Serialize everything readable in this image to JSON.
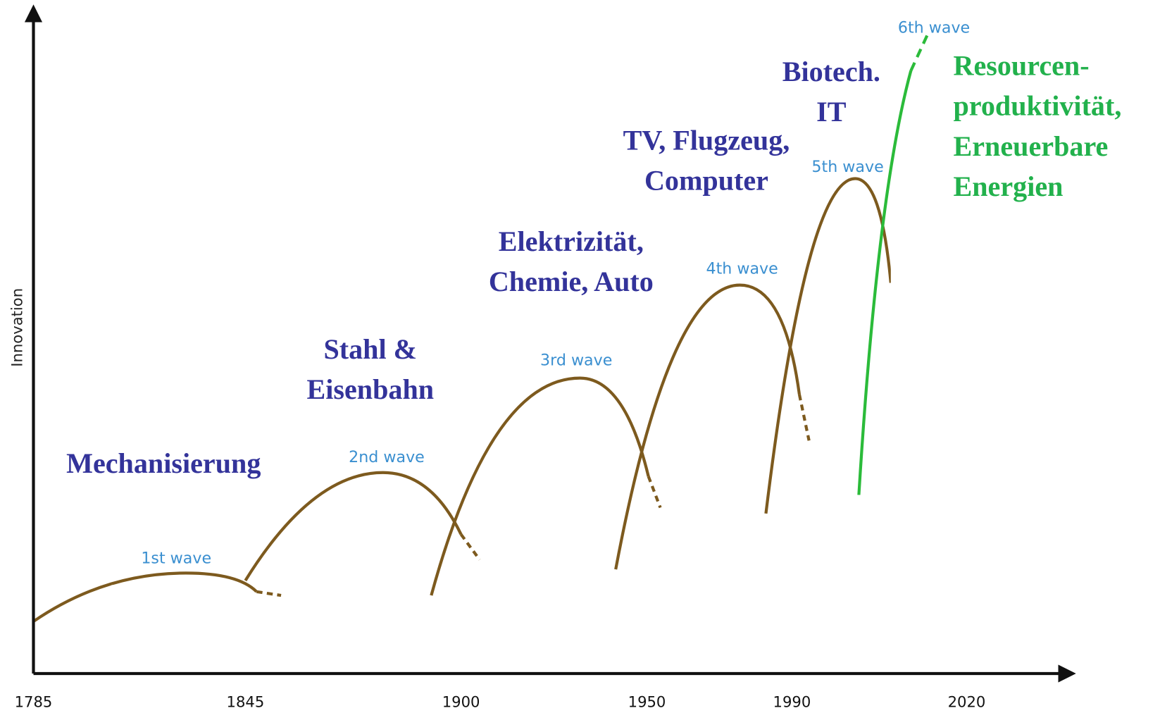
{
  "axis": {
    "y_label": "Innovation",
    "x_labels": [
      "1785",
      "1845",
      "1900",
      "1950",
      "1990",
      "2020"
    ]
  },
  "waves": [
    {
      "label": "1st wave",
      "topic": [
        "Mechanisierung"
      ]
    },
    {
      "label": "2nd wave",
      "topic": [
        "Stahl &",
        "Eisenbahn"
      ]
    },
    {
      "label": "3rd wave",
      "topic": [
        "Elektrizität,",
        "Chemie, Auto"
      ]
    },
    {
      "label": "4th wave",
      "topic": [
        "TV, Flugzeug,",
        "Computer"
      ]
    },
    {
      "label": "5th wave",
      "topic": [
        "Biotech.",
        "IT"
      ]
    },
    {
      "label": "6th wave",
      "topic": [
        "Resourcen-",
        "produktivität,",
        "Erneuerbare",
        "Energien"
      ]
    }
  ]
}
